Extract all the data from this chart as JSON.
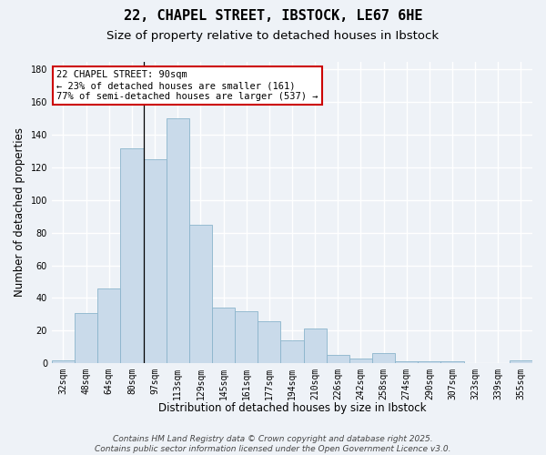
{
  "title_line1": "22, CHAPEL STREET, IBSTOCK, LE67 6HE",
  "title_line2": "Size of property relative to detached houses in Ibstock",
  "xlabel": "Distribution of detached houses by size in Ibstock",
  "ylabel": "Number of detached properties",
  "categories": [
    "32sqm",
    "48sqm",
    "64sqm",
    "80sqm",
    "97sqm",
    "113sqm",
    "129sqm",
    "145sqm",
    "161sqm",
    "177sqm",
    "194sqm",
    "210sqm",
    "226sqm",
    "242sqm",
    "258sqm",
    "274sqm",
    "290sqm",
    "307sqm",
    "323sqm",
    "339sqm",
    "355sqm"
  ],
  "values": [
    2,
    31,
    46,
    132,
    125,
    150,
    85,
    34,
    32,
    26,
    14,
    21,
    5,
    3,
    6,
    1,
    1,
    1,
    0,
    0,
    2
  ],
  "bar_color": "#c9daea",
  "bar_edge_color": "#8ab4cc",
  "background_color": "#eef2f7",
  "grid_color": "#ffffff",
  "annotation_line1": "22 CHAPEL STREET: 90sqm",
  "annotation_line2": "← 23% of detached houses are smaller (161)",
  "annotation_line3": "77% of semi-detached houses are larger (537) →",
  "annotation_box_color": "#ffffff",
  "annotation_box_edge": "#cc0000",
  "vline_x_index": 3.5,
  "ylim": [
    0,
    185
  ],
  "yticks": [
    0,
    20,
    40,
    60,
    80,
    100,
    120,
    140,
    160,
    180
  ],
  "footer_line1": "Contains HM Land Registry data © Crown copyright and database right 2025.",
  "footer_line2": "Contains public sector information licensed under the Open Government Licence v3.0.",
  "title_fontsize": 11,
  "subtitle_fontsize": 9.5,
  "axis_label_fontsize": 8.5,
  "tick_fontsize": 7,
  "annotation_fontsize": 7.5,
  "footer_fontsize": 6.5
}
